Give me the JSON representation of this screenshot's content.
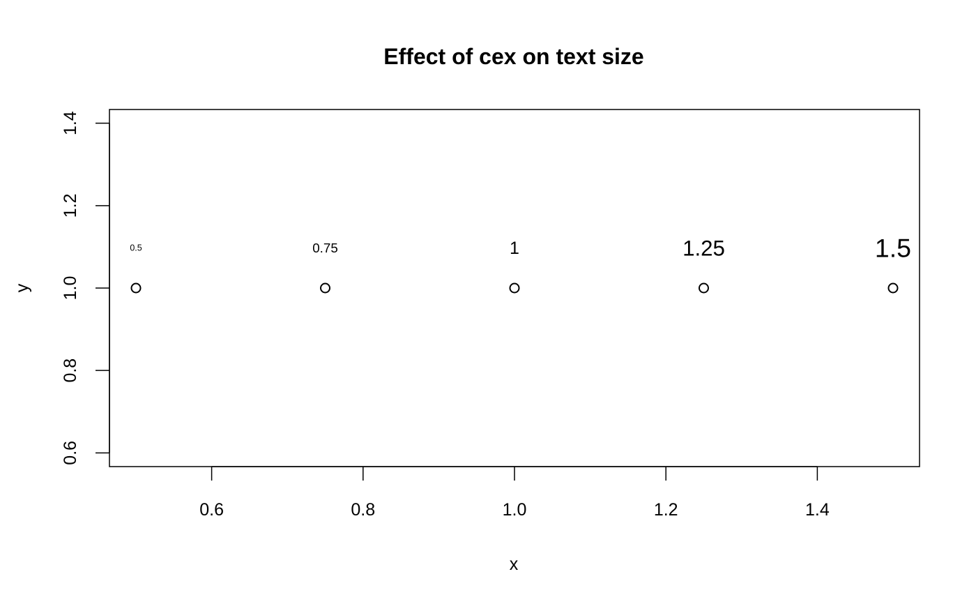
{
  "chart_data": {
    "type": "scatter",
    "title": "Effect of cex on text size",
    "xlabel": "x",
    "ylabel": "y",
    "xlim": [
      0.465,
      1.535
    ],
    "ylim": [
      0.5667,
      1.4333
    ],
    "xticks": [
      0.6,
      0.8,
      1.0,
      1.2,
      1.4
    ],
    "xtick_labels": [
      "0.6",
      "0.8",
      "1.0",
      "1.2",
      "1.4"
    ],
    "yticks": [
      0.6,
      0.8,
      1.0,
      1.2,
      1.4
    ],
    "ytick_labels": [
      "0.6",
      "0.8",
      "1.0",
      "1.2",
      "1.4"
    ],
    "grid": false,
    "legend": "none",
    "marker": "open-circle",
    "points": [
      {
        "x": 0.5,
        "y": 1.0,
        "label": "0.5",
        "cex": 0.5
      },
      {
        "x": 0.75,
        "y": 1.0,
        "label": "0.75",
        "cex": 0.75
      },
      {
        "x": 1.0,
        "y": 1.0,
        "label": "1",
        "cex": 1.0
      },
      {
        "x": 1.25,
        "y": 1.0,
        "label": "1.25",
        "cex": 1.25
      },
      {
        "x": 1.5,
        "y": 1.0,
        "label": "1.5",
        "cex": 1.5
      }
    ],
    "colors": {
      "points": "#000000",
      "text": "#000000",
      "background": "#ffffff"
    }
  }
}
